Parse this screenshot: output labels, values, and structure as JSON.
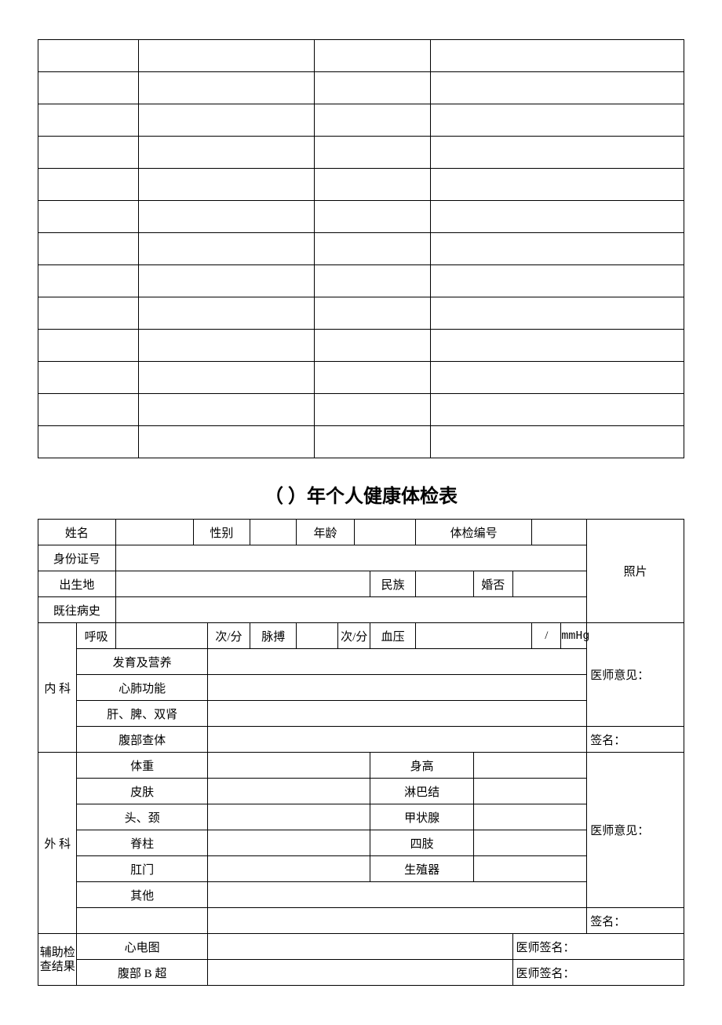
{
  "upper_table": {
    "rows": 13,
    "col_widths_pct": [
      15.5,
      27.3,
      18.0,
      39.2
    ]
  },
  "title": {
    "prefix": "（",
    "blank": "      ",
    "suffix": "）年个人健康体检表"
  },
  "labels": {
    "name": "姓名",
    "gender": "性别",
    "age": "年龄",
    "exam_no": "体检编号",
    "photo": "照片",
    "id_no": "身份证号",
    "birthplace": "出生地",
    "ethnicity": "民族",
    "marital": "婚否",
    "history": "既往病史",
    "internal": "内   科",
    "respiration": "呼吸",
    "per_min": "次/分",
    "pulse": "脉搏",
    "bp": "血压",
    "bp_slash": "/",
    "bp_unit": "mmHg",
    "dr_opinion": "医师意见：",
    "nutrition": "发育及营养",
    "cardiopulm": "心肺功能",
    "lks": "肝、脾、双肾",
    "abdomen": "腹部查体",
    "signature": "签名：",
    "external": "外 科",
    "weight": "体重",
    "height": "身高",
    "skin": "皮肤",
    "lymph": "淋巴结",
    "head_neck": "头、颈",
    "thyroid": "甲状腺",
    "spine": "脊柱",
    "limbs": "四肢",
    "anus": "肛门",
    "genitals": "生殖器",
    "other": "其他",
    "aux": "辅助检查结果",
    "aux_l1": "辅助检",
    "aux_l2": "查结果",
    "ecg": "心电图",
    "ultrasound": "腹部 B 超",
    "dr_sign": "医师签名："
  }
}
